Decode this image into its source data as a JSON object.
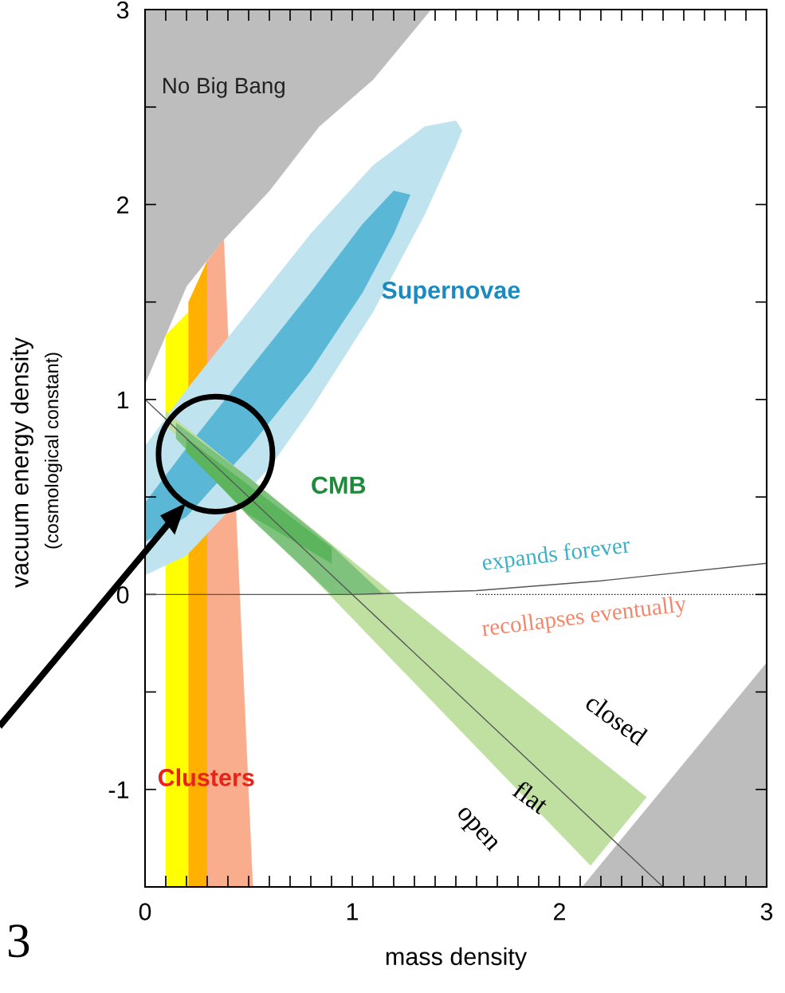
{
  "chart_data": {
    "type": "area",
    "xlabel": "mass density",
    "ylabel": "vacuum energy density\n(cosmological constant)",
    "xlim": [
      0,
      3
    ],
    "ylim": [
      -1.5,
      3
    ],
    "xticks": [
      0,
      {
        "value": 0.1,
        "label": null
      },
      {
        "value": 0.2,
        "label": null
      },
      {
        "value": 0.3,
        "label": null
      },
      {
        "value": 0.4,
        "label": null
      },
      {
        "value": 0.5,
        "label": null
      },
      {
        "value": 0.6,
        "label": null
      },
      {
        "value": 0.7,
        "label": null
      },
      {
        "value": 0.8,
        "label": null
      },
      {
        "value": 0.9,
        "label": null
      },
      1,
      {
        "value": 1.1,
        "label": null
      },
      {
        "value": 1.2,
        "label": null
      },
      {
        "value": 1.3,
        "label": null
      },
      {
        "value": 1.4,
        "label": null
      },
      {
        "value": 1.5,
        "label": null
      },
      {
        "value": 1.6,
        "label": null
      },
      {
        "value": 1.7,
        "label": null
      },
      {
        "value": 1.8,
        "label": null
      },
      {
        "value": 1.9,
        "label": null
      },
      2,
      {
        "value": 2.1,
        "label": null
      },
      {
        "value": 2.2,
        "label": null
      },
      {
        "value": 2.3,
        "label": null
      },
      {
        "value": 2.4,
        "label": null
      },
      {
        "value": 2.5,
        "label": null
      },
      {
        "value": 2.6,
        "label": null
      },
      {
        "value": 2.7,
        "label": null
      },
      {
        "value": 2.8,
        "label": null
      },
      {
        "value": 2.9,
        "label": null
      },
      3
    ],
    "yticks": [
      {
        "value": -1.5,
        "label": null
      },
      -1,
      {
        "value": -0.5,
        "label": null
      },
      0,
      {
        "value": 0.5,
        "label": null
      },
      1,
      {
        "value": 1.5,
        "label": null
      },
      2,
      {
        "value": 2.5,
        "label": null
      },
      3
    ],
    "grid": false,
    "legend": false,
    "series": [
      {
        "color": "#bdbdbd",
        "x": [
          0,
          0.1,
          0.2,
          0.38,
          0.6,
          0.84,
          1.1,
          1.38,
          0,
          0
        ],
        "values": [
          1.08,
          1.33,
          1.58,
          1.82,
          2.07,
          2.4,
          2.64,
          3,
          3,
          1.08
        ]
      },
      {
        "color": "#bdbdbd",
        "x": [
          2.11,
          3,
          3,
          2.11
        ],
        "values": [
          -1.5,
          -0.35,
          -1.5,
          -1.5
        ]
      },
      {
        "color": "#ffff00",
        "x": [
          0.1,
          0.1,
          0.21,
          0.21,
          0.1
        ],
        "values": [
          -1.5,
          1.33,
          1.45,
          -1.5,
          -1.5
        ]
      },
      {
        "color": "#ffb000",
        "x": [
          0.21,
          0.21,
          0.3,
          0.3,
          0.21
        ],
        "values": [
          -1.5,
          1.5,
          1.71,
          -1.5,
          -1.5
        ]
      },
      {
        "color": "#f9ad8c",
        "x": [
          0.3,
          0.3,
          0.38,
          0.52,
          0.3
        ],
        "values": [
          -1.5,
          1.71,
          1.82,
          -1.5,
          -1.5
        ]
      },
      {
        "color": "#bfe4ef",
        "x": [
          0,
          0.2,
          0.5,
          0.8,
          1.1,
          1.35,
          1.5,
          1.53,
          1.5,
          1.35,
          1.1,
          0.8,
          0.6,
          0.2,
          0,
          0
        ],
        "values": [
          0.76,
          1.05,
          1.45,
          1.85,
          2.2,
          2.4,
          2.43,
          2.38,
          2.3,
          1.95,
          1.45,
          0.95,
          0.65,
          0.2,
          0.1,
          0.76
        ]
      },
      {
        "color": "#5bb7d6",
        "x": [
          0,
          0.2,
          0.5,
          0.8,
          1.05,
          1.2,
          1.28,
          1.2,
          1.05,
          0.8,
          0.5,
          0.2,
          0,
          0
        ],
        "values": [
          0.47,
          0.75,
          1.15,
          1.55,
          1.9,
          2.07,
          2.05,
          1.85,
          1.55,
          1.15,
          0.75,
          0.4,
          0.27,
          0.47
        ]
      },
      {
        "color": "#bfe0a0",
        "x": [
          0.1,
          2.42,
          2.15,
          0.1,
          0.1
        ],
        "values": [
          0.94,
          -1.04,
          -1.39,
          0.87,
          0.94
        ]
      },
      {
        "color": "#7ec27e",
        "x": [
          0.15,
          0.5,
          0.9,
          1.15,
          0.9,
          0.5,
          0.15,
          0.15
        ],
        "values": [
          0.88,
          0.6,
          0.25,
          0,
          0,
          0.4,
          0.8,
          0.88
        ]
      },
      {
        "color": "#5cb55c",
        "x": [
          0.2,
          0.5,
          0.9,
          0.9,
          0.5,
          0.2,
          0.2
        ],
        "values": [
          0.8,
          0.56,
          0.24,
          0.16,
          0.41,
          0.73,
          0.8
        ]
      },
      {
        "type": "line",
        "color": "#555555",
        "line_style": "solid",
        "x": [
          0,
          2.5
        ],
        "values": [
          1,
          -1.5
        ]
      },
      {
        "type": "line",
        "color": "#555555",
        "line_style": "solid",
        "x": [
          0,
          1,
          1.6,
          2.2,
          3
        ],
        "values": [
          0,
          0,
          0.02,
          0.07,
          0.16
        ]
      },
      {
        "type": "line",
        "color": "#000000",
        "line_style": "dotted",
        "x": [
          1.6,
          3
        ],
        "values": [
          0,
          0
        ]
      }
    ],
    "annotations": [
      "No Big Bang",
      "Supernovae",
      "CMB",
      "Clusters",
      "expands forever",
      "recollapses eventually",
      "closed",
      "flat",
      "open",
      "3"
    ]
  }
}
